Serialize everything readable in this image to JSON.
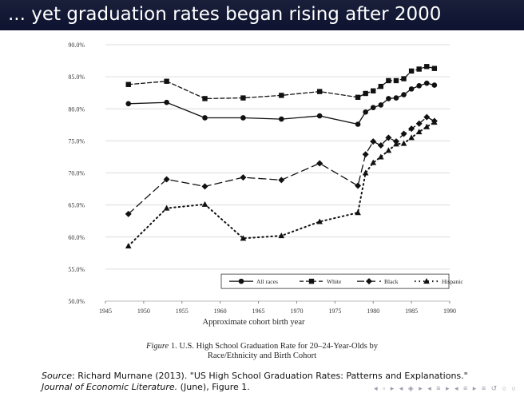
{
  "slide": {
    "title": "... yet graduation rates began rising after 2000"
  },
  "caption": {
    "figure_label": "Figure",
    "line1": " 1. U.S. High School Graduation Rate for 20–24-Year-Olds by",
    "line2": "Race/Ethnicity and Birth Cohort"
  },
  "source": {
    "label": "Source",
    "text": ": Richard Murnane (2013). \"US High School Graduation Rates: Patterns and Explanations.\"",
    "journal": "Journal of Economic Literature.",
    "rest": " (June), Figure 1."
  },
  "nav": {
    "symbols": "◂ ▫ ▸ ◂ ◈ ▸ ◂ ≡ ▸ ◂ ≡ ▸ ≡ ↺ ○ ○"
  },
  "chart_data": {
    "type": "line",
    "xlabel": "Approximate cohort birth year",
    "ylabel": "",
    "xlim": [
      1945,
      1990
    ],
    "ylim": [
      50,
      90
    ],
    "xticks": [
      1945,
      1950,
      1955,
      1960,
      1965,
      1970,
      1975,
      1980,
      1985,
      1990
    ],
    "yticks": [
      "50.0%",
      "55.0%",
      "60.0%",
      "65.0%",
      "70.0%",
      "75.0%",
      "80.0%",
      "85.0%",
      "90.0%"
    ],
    "grid": "horizontal",
    "legend_placement": "bottom-right",
    "x": [
      1948,
      1953,
      1958,
      1963,
      1968,
      1973,
      1978,
      1979,
      1980,
      1981,
      1982,
      1983,
      1984,
      1985,
      1986,
      1987,
      1988
    ],
    "series": [
      {
        "name": "All races",
        "marker": "circle",
        "dash": "solid",
        "values": [
          80.8,
          81.0,
          78.6,
          78.6,
          78.4,
          78.9,
          77.6,
          79.5,
          80.2,
          80.6,
          81.6,
          81.7,
          82.2,
          83.1,
          83.6,
          84.0,
          83.7
        ]
      },
      {
        "name": "White",
        "marker": "square",
        "dash": "short-dash",
        "values": [
          83.8,
          84.3,
          81.6,
          81.7,
          82.1,
          82.7,
          81.8,
          82.4,
          82.8,
          83.5,
          84.4,
          84.4,
          84.7,
          85.9,
          86.2,
          86.6,
          86.3
        ]
      },
      {
        "name": "Black",
        "marker": "diamond",
        "dash": "long-dash",
        "values": [
          63.6,
          69.0,
          67.9,
          69.3,
          68.9,
          71.5,
          68.0,
          72.9,
          74.9,
          74.3,
          75.5,
          74.9,
          76.1,
          76.9,
          77.7,
          78.7,
          78.1
        ]
      },
      {
        "name": "Hispanic",
        "marker": "triangle",
        "dash": "dotted",
        "values": [
          58.6,
          64.5,
          65.1,
          59.8,
          60.2,
          62.4,
          63.8,
          70.0,
          71.6,
          72.5,
          73.5,
          74.5,
          74.6,
          75.5,
          76.4,
          77.2,
          77.9
        ]
      }
    ]
  }
}
